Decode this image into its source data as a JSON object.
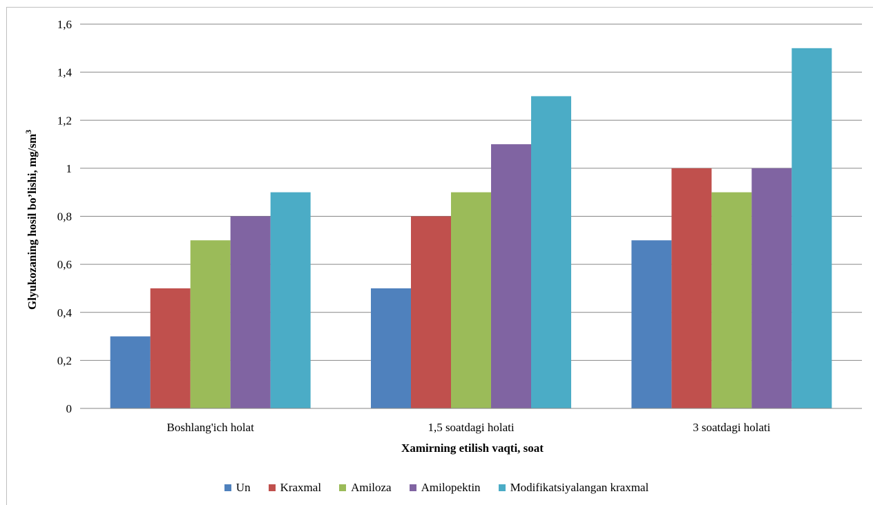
{
  "chart_data": {
    "type": "bar",
    "title": "",
    "xlabel": "Xamirning  etilish vaqti, soat",
    "ylabel": "Glyukozaning  hosil bo’lishi,  mg/sm",
    "ylabel_superscript": "3",
    "categories": [
      "Boshlang'ich holat",
      "1,5 soatdagi holati",
      "3 soatdagi holati"
    ],
    "ylim": [
      0,
      1.6
    ],
    "yticks": [
      "0",
      "0,2",
      "0,4",
      "0,6",
      "0,8",
      "1",
      "1,2",
      "1,4",
      "1,6"
    ],
    "ytick_values": [
      0,
      0.2,
      0.4,
      0.6,
      0.8,
      1.0,
      1.2,
      1.4,
      1.6
    ],
    "grid": true,
    "legend_position": "bottom",
    "series": [
      {
        "name": "Un",
        "color": "#4f81bd",
        "values": [
          0.3,
          0.5,
          0.7
        ]
      },
      {
        "name": "Kraxmal",
        "color": "#c0504d",
        "values": [
          0.5,
          0.8,
          1.0
        ]
      },
      {
        "name": "Amiloza",
        "color": "#9bbb59",
        "values": [
          0.7,
          0.9,
          0.9
        ]
      },
      {
        "name": "Amilopektin",
        "color": "#8064a2",
        "values": [
          0.8,
          1.1,
          1.0
        ]
      },
      {
        "name": "Modifikatsiyalangan kraxmal",
        "color": "#4bacc6",
        "values": [
          0.9,
          1.3,
          1.5
        ]
      }
    ]
  }
}
